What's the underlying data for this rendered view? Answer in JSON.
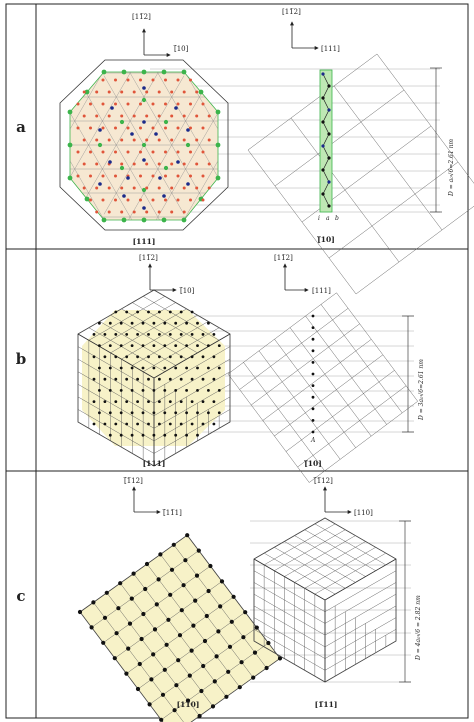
{
  "panels": [
    {
      "label": "a",
      "left_axes": {
        "up": "[11̅2]",
        "right": "[̅10]"
      },
      "right_axes": {
        "up": "[11̅2]",
        "right": "[111]"
      },
      "left_caption": "[111]",
      "right_caption": "[̅10]",
      "dimension": "D = a₀√6=2.61 nm",
      "small_labels": [
        "i",
        "a",
        "b"
      ]
    },
    {
      "label": "b",
      "left_axes": {
        "up": "[11̅2]",
        "right": "[̅10]"
      },
      "right_axes": {
        "up": "[11̅2]",
        "right": "[111]"
      },
      "left_caption": "[111]",
      "right_caption": "[̅10]",
      "dimension": "D = 3a₀√6=2.61 nm",
      "small_labels": [
        "A"
      ]
    },
    {
      "label": "c",
      "left_axes": {
        "up": "[̅1̅12]",
        "right": "[̅11̅1]"
      },
      "right_axes": {
        "up": "[̅1̅12]",
        "right": "[110]"
      },
      "left_caption": "[110]",
      "right_caption": "[1̅11]",
      "dimension": "D = 4a₀√6 = 2.82 nm",
      "small_labels": []
    }
  ],
  "colors": {
    "frame": "#222222",
    "fill": "#f7f2c8",
    "green": "#3cb44b",
    "red": "#e0553a",
    "blue": "#1b2a8a",
    "dot": "#111111"
  }
}
